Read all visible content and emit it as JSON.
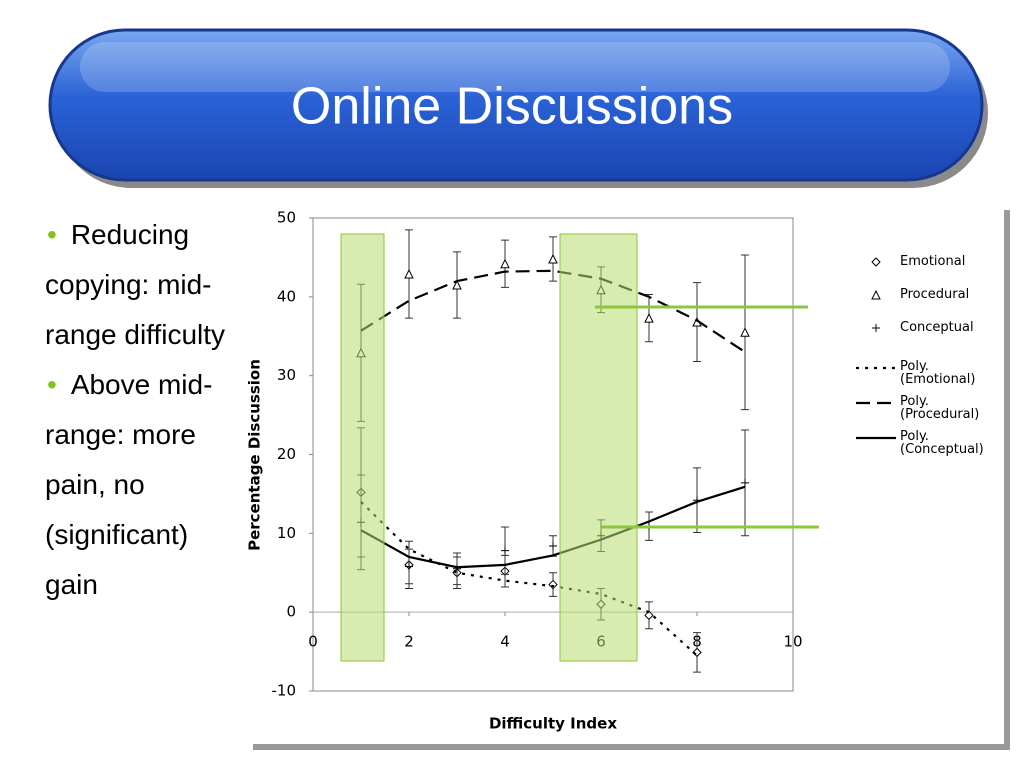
{
  "slide": {
    "title": "Online Discussions",
    "bullets": [
      "Reducing copying: mid-range difficulty",
      "Above mid-range: more pain, no (significant) gain"
    ]
  },
  "chart_data": {
    "type": "scatter",
    "xlabel": "Difficulty Index",
    "ylabel": "Percentage Discussion",
    "xlim": [
      0,
      10
    ],
    "xticks": [
      0,
      2,
      4,
      6,
      8,
      10
    ],
    "ylim": [
      -10,
      50
    ],
    "yticks": [
      -10,
      0,
      10,
      20,
      30,
      40,
      50
    ],
    "series": [
      {
        "name": "Emotional",
        "marker": "diamond",
        "color": "#000000",
        "x": [
          1,
          2,
          3,
          4,
          5,
          6,
          7,
          8
        ],
        "values": [
          15.2,
          6.0,
          5.0,
          5.2,
          3.5,
          1.0,
          -0.4,
          -5.1
        ],
        "errors": [
          8.2,
          3,
          2,
          2,
          1.5,
          2,
          1.7,
          2.5
        ]
      },
      {
        "name": "Procedural",
        "marker": "triangle",
        "color": "#000000",
        "x": [
          1,
          2,
          3,
          4,
          5,
          6,
          7,
          8,
          9
        ],
        "values": [
          32.9,
          42.9,
          41.5,
          44.2,
          44.8,
          40.9,
          37.3,
          36.8,
          35.5
        ],
        "errors": [
          8.7,
          5.6,
          4.2,
          3,
          2.8,
          2.9,
          3,
          5,
          9.8
        ]
      },
      {
        "name": "Conceptual",
        "marker": "plus",
        "color": "#000000",
        "x": [
          1,
          2,
          3,
          4,
          5,
          6,
          7,
          8,
          9
        ],
        "values": [
          11.4,
          5.8,
          5.5,
          7.8,
          8.4,
          9.7,
          10.9,
          14.2,
          16.4
        ],
        "errors": [
          6,
          2.2,
          2,
          3,
          1.3,
          2,
          1.8,
          4.1,
          6.7
        ]
      },
      {
        "name": "Poly. (Emotional)",
        "style": "dotted",
        "color": "#000000",
        "x": [
          1,
          2,
          3,
          4,
          5,
          6,
          7,
          8
        ],
        "values": [
          14,
          8,
          5,
          4,
          3.3,
          2.3,
          0,
          -5.5
        ]
      },
      {
        "name": "Poly. (Procedural)",
        "style": "dashed",
        "color": "#000000",
        "x": [
          1,
          2,
          3,
          4,
          5,
          6,
          7,
          8,
          9
        ],
        "values": [
          35.7,
          39.5,
          42,
          43.2,
          43.3,
          42.3,
          40,
          37,
          33
        ]
      },
      {
        "name": "Poly. (Conceptual)",
        "style": "solid",
        "color": "#000000",
        "x": [
          1,
          2,
          3,
          4,
          5,
          6,
          7,
          8,
          9
        ],
        "values": [
          10.4,
          7,
          5.7,
          6,
          7.2,
          9.2,
          11.5,
          14,
          15.9
        ]
      }
    ]
  }
}
